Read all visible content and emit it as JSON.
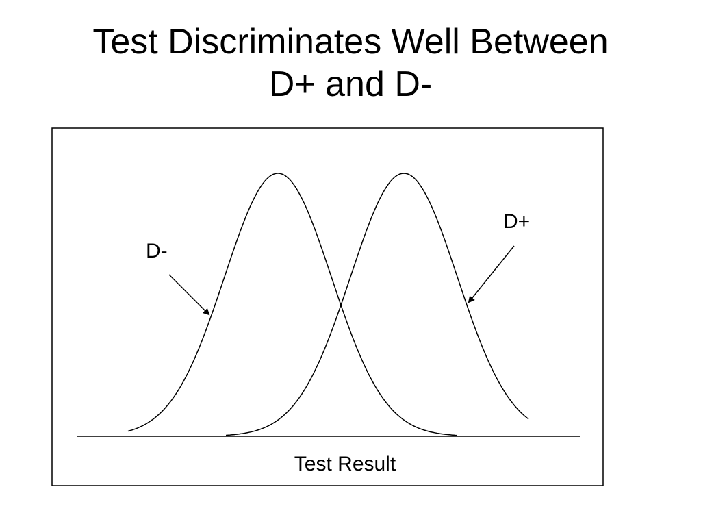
{
  "title": {
    "line1": "Test Discriminates Well Between",
    "line2": "D+ and D-"
  },
  "diagram": {
    "curve_left_label": "D-",
    "curve_right_label": "D+",
    "axis_label": "Test Result"
  }
}
